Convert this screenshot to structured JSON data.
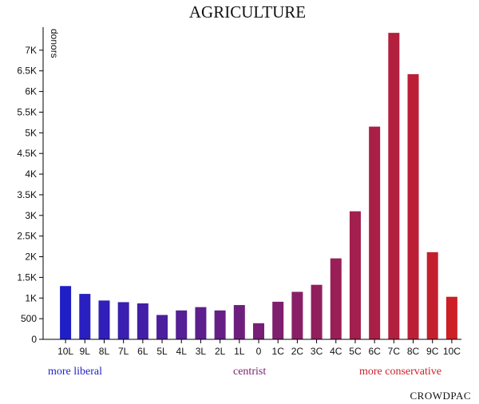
{
  "chart_data": {
    "type": "bar",
    "title": "AGRICULTURE",
    "xlabel": "",
    "ylabel": "donors",
    "categories": [
      "10L",
      "9L",
      "8L",
      "7L",
      "6L",
      "5L",
      "4L",
      "3L",
      "2L",
      "1L",
      "0",
      "1C",
      "2C",
      "3C",
      "4C",
      "5C",
      "6C",
      "7C",
      "8C",
      "9C",
      "10C"
    ],
    "values": [
      1290,
      1100,
      940,
      900,
      870,
      590,
      700,
      780,
      700,
      830,
      390,
      910,
      1150,
      1320,
      1960,
      3100,
      5150,
      7420,
      6420,
      2110,
      1030
    ],
    "ylim": [
      0,
      7500
    ],
    "yticks": [
      0,
      500,
      1000,
      1500,
      2000,
      2500,
      3000,
      3500,
      4000,
      4500,
      5000,
      5500,
      6000,
      6500,
      7000
    ],
    "ytick_labels": [
      "0",
      "500",
      "1K",
      "1.5K",
      "2K",
      "2.5K",
      "3K",
      "3.5K",
      "4K",
      "4.5K",
      "5K",
      "5.5K",
      "6K",
      "6.5K",
      "7K"
    ],
    "colors": [
      "#1f1fc6",
      "#2a1fc0",
      "#301fb8",
      "#3a1fb0",
      "#431fa8",
      "#4c1f9e",
      "#551f96",
      "#5d1f8e",
      "#661f86",
      "#6e1f7e",
      "#771f76",
      "#801f6e",
      "#881f66",
      "#911f5e",
      "#991f56",
      "#a21f4e",
      "#aa1f46",
      "#b31f3e",
      "#bb1f36",
      "#c41f2e",
      "#cc1f26"
    ],
    "annotations": [
      {
        "text": "more liberal",
        "color": "#1f1fc6"
      },
      {
        "text": "centrist",
        "color": "#7a1f72"
      },
      {
        "text": "more conservative",
        "color": "#cc1f26"
      }
    ],
    "grid": false,
    "legend": "none"
  },
  "footer": {
    "brand": "CROWDPAC"
  }
}
